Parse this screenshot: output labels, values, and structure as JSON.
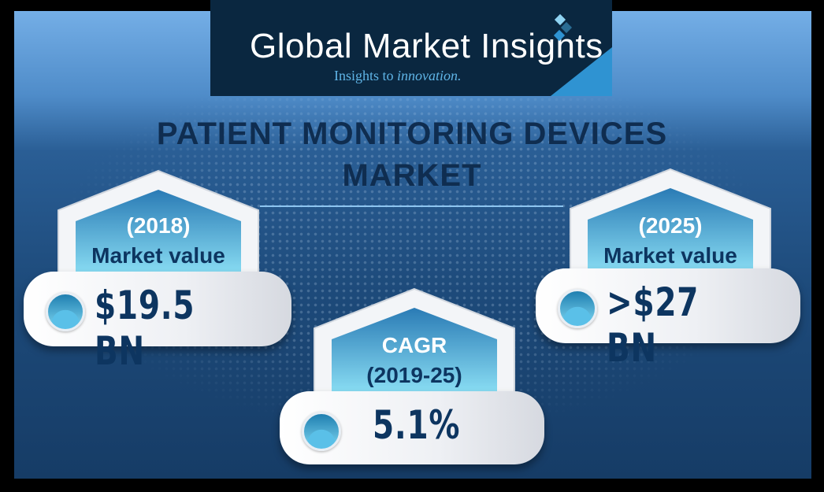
{
  "logo": {
    "name": "Global Market Insights",
    "tagline_prefix": "Insights to ",
    "tagline_italic": "innovation."
  },
  "title": {
    "line1": "PATIENT MONITORING DEVICES",
    "line2": "MARKET"
  },
  "cards": [
    {
      "top": "(2018)",
      "bottom": "Market value",
      "value": "$19.5 BN",
      "icon": "wave-circle-icon"
    },
    {
      "top": "CAGR",
      "bottom": "(2019-25)",
      "value": "5.1%",
      "icon": "wave-circle-icon"
    },
    {
      "top": "(2025)",
      "bottom": "Market value",
      "value": ">$27 BN",
      "icon": "wave-circle-icon"
    }
  ],
  "colors": {
    "navy": "#0d3560",
    "accent": "#2f93d2",
    "logo_bg": "#0a2740"
  }
}
